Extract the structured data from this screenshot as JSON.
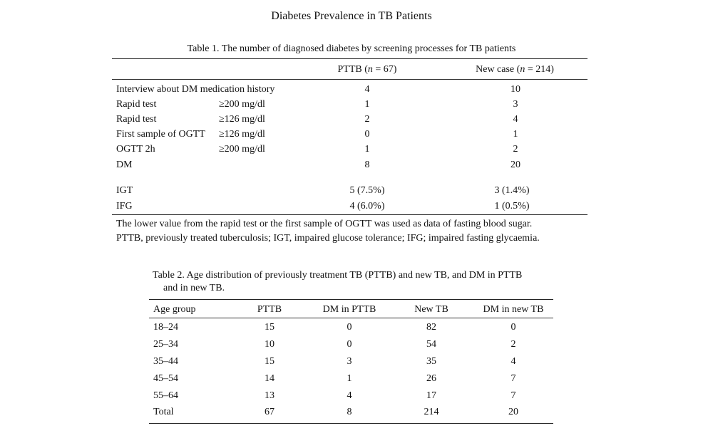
{
  "page": {
    "title": "Diabetes Prevalence in TB Patients"
  },
  "table1": {
    "caption": "Table 1. The number of diagnosed diabetes by screening processes for TB patients",
    "col_pttb_prefix": "PTTB (",
    "col_pttb_n": "n",
    "col_pttb_suffix": " = 67)",
    "col_new_prefix": "New case (",
    "col_new_n": "n",
    "col_new_suffix": " = 214)",
    "rows": [
      {
        "label": "Interview about DM medication history",
        "criterion": "",
        "pttb": "4",
        "new": "10"
      },
      {
        "label": "Rapid test",
        "criterion": "≥200 mg/dl",
        "pttb": "1",
        "new": "3"
      },
      {
        "label": "Rapid test",
        "criterion": "≥126 mg/dl",
        "pttb": "2",
        "new": "4"
      },
      {
        "label": "First sample of OGTT",
        "criterion": "≥126 mg/dl",
        "pttb": "0",
        "new": "1"
      },
      {
        "label": "OGTT 2h",
        "criterion": "≥200 mg/dl",
        "pttb": "1",
        "new": "2"
      },
      {
        "label": "DM",
        "criterion": "",
        "pttb": "8",
        "new": "20"
      },
      {
        "label": "IGT",
        "criterion": "",
        "pttb": "5 (7.5%)",
        "new": "3 (1.4%)"
      },
      {
        "label": "IFG",
        "criterion": "",
        "pttb": "4 (6.0%)",
        "new": "1 (0.5%)"
      }
    ],
    "note1": "The lower value from the rapid test or the first sample of OGTT was used as data of fasting blood sugar.",
    "note2": "PTTB, previously treated tuberculosis; IGT, impaired glucose tolerance; IFG; impaired fasting glycaemia."
  },
  "table2": {
    "caption_line1": "Table 2. Age distribution of previously treatment TB (PTTB) and new TB, and DM in PTTB",
    "caption_line2": "and in new TB.",
    "headers": [
      "Age group",
      "PTTB",
      "DM in PTTB",
      "New TB",
      "DM in new TB"
    ],
    "rows": [
      [
        "18–24",
        "15",
        "0",
        "82",
        "0"
      ],
      [
        "25–34",
        "10",
        "0",
        "54",
        "2"
      ],
      [
        "35–44",
        "15",
        "3",
        "35",
        "4"
      ],
      [
        "45–54",
        "14",
        "1",
        "26",
        "7"
      ],
      [
        "55–64",
        "13",
        "4",
        "17",
        "7"
      ],
      [
        "Total",
        "67",
        "8",
        "214",
        "20"
      ]
    ]
  }
}
